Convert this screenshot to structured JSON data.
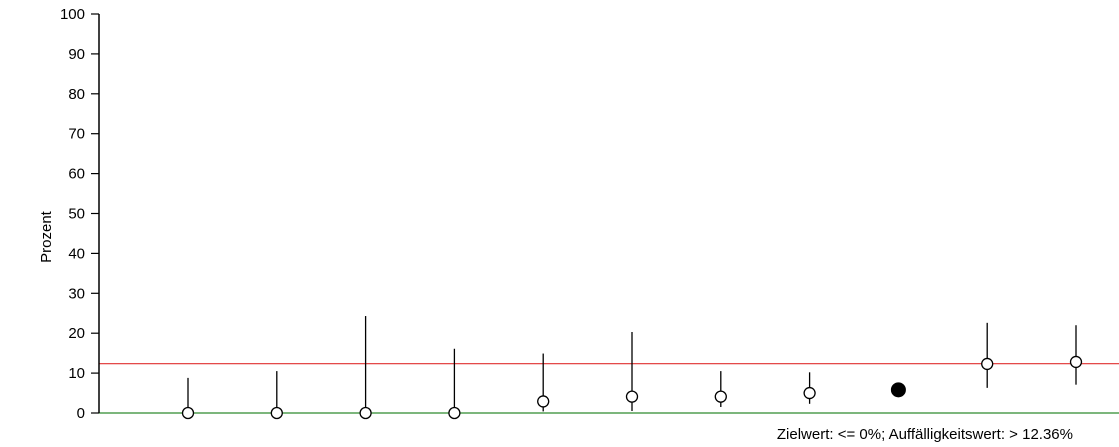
{
  "chart_data": {
    "type": "scatter",
    "title": "",
    "xlabel": "",
    "ylabel": "Prozent",
    "ylim": [
      0,
      100
    ],
    "yticks": [
      0,
      10,
      20,
      30,
      40,
      50,
      60,
      70,
      80,
      90,
      100
    ],
    "grid": false,
    "points": [
      {
        "value": 0.0,
        "ci_low": 0.0,
        "ci_high": 8.8,
        "highlight": false
      },
      {
        "value": 0.0,
        "ci_low": 0.0,
        "ci_high": 10.5,
        "highlight": false
      },
      {
        "value": 0.0,
        "ci_low": 0.0,
        "ci_high": 24.3,
        "highlight": false
      },
      {
        "value": 0.0,
        "ci_low": 0.0,
        "ci_high": 16.1,
        "highlight": false
      },
      {
        "value": 2.9,
        "ci_low": 0.4,
        "ci_high": 14.9,
        "highlight": false
      },
      {
        "value": 4.1,
        "ci_low": 0.5,
        "ci_high": 20.3,
        "highlight": false
      },
      {
        "value": 4.1,
        "ci_low": 1.5,
        "ci_high": 10.5,
        "highlight": false
      },
      {
        "value": 5.0,
        "ci_low": 2.3,
        "ci_high": 10.2,
        "highlight": false
      },
      {
        "value": 5.8,
        "ci_low": 4.8,
        "ci_high": 7.3,
        "highlight": true
      },
      {
        "value": 12.3,
        "ci_low": 6.3,
        "ci_high": 22.6,
        "highlight": false
      },
      {
        "value": 12.8,
        "ci_low": 7.1,
        "ci_high": 22.0,
        "highlight": false
      }
    ],
    "reference_lines": [
      {
        "value": 12.36,
        "color": "#e03030"
      },
      {
        "value": 0,
        "color": "#2e8b2e"
      }
    ],
    "note": "Zielwert: <= 0%; Auffälligkeitswert: > 12.36%"
  }
}
